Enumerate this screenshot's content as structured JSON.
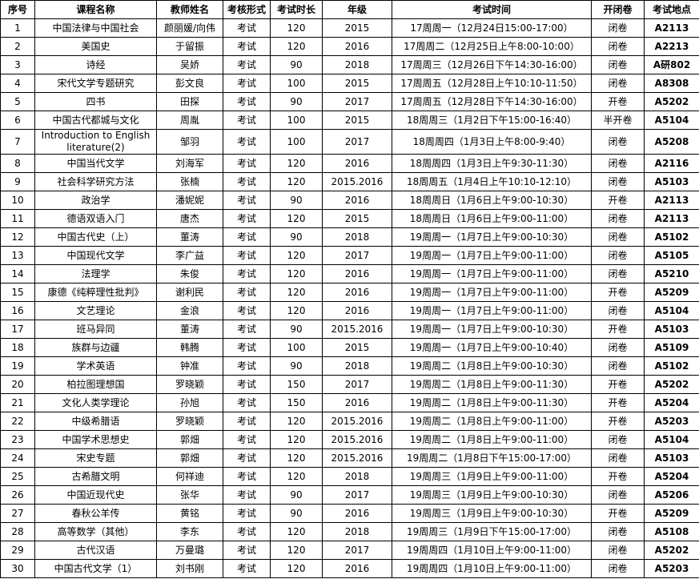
{
  "table": {
    "headers": [
      "序号",
      "课程名称",
      "教师姓名",
      "考核形式",
      "考试时长",
      "年级",
      "考试时间",
      "开闭卷",
      "考试地点"
    ],
    "rows": [
      [
        "1",
        "中国法律与中国社会",
        "颜丽媛/向伟",
        "考试",
        "120",
        "2015",
        "17周周一（12月24日15:00-17:00）",
        "闭卷",
        "A2113"
      ],
      [
        "2",
        "美国史",
        "于留振",
        "考试",
        "120",
        "2016",
        "17周周二（12月25日上午8:00-10:00）",
        "闭卷",
        "A2213"
      ],
      [
        "3",
        "诗经",
        "吴娇",
        "考试",
        "90",
        "2018",
        "17周周三（12月26日下午14:30-16:00）",
        "闭卷",
        "A研802"
      ],
      [
        "4",
        "宋代文学专题研究",
        "彭文良",
        "考试",
        "100",
        "2015",
        "17周周五（12月28日上午10:10-11:50）",
        "闭卷",
        "A8308"
      ],
      [
        "5",
        "四书",
        "田探",
        "考试",
        "90",
        "2017",
        "17周周五（12月28日下午14:30-16:00）",
        "开卷",
        "A5202"
      ],
      [
        "6",
        "中国古代都城与文化",
        "周胤",
        "考试",
        "100",
        "2015",
        "18周周三（1月2日下午15:00-16:40）",
        "半开卷",
        "A5104"
      ],
      [
        "7",
        "Introduction to English literature(2)",
        "邹羽",
        "考试",
        "100",
        "2017",
        "18周周四（1月3日上午8:00-9:40）",
        "闭卷",
        "A5208"
      ],
      [
        "8",
        "中国当代文学",
        "刘海军",
        "考试",
        "120",
        "2016",
        "18周周四（1月3日上午9:30-11:30）",
        "闭卷",
        "A2116"
      ],
      [
        "9",
        "社会科学研究方法",
        "张楠",
        "考试",
        "120",
        "2015.2016",
        "18周周五（1月4日上午10:10-12:10）",
        "闭卷",
        "A5103"
      ],
      [
        "10",
        "政治学",
        "潘妮妮",
        "考试",
        "90",
        "2016",
        "18周周日（1月6日上午9:00-10:30）",
        "开卷",
        "A2113"
      ],
      [
        "11",
        "德语双语入门",
        "唐杰",
        "考试",
        "120",
        "2015",
        "18周周日（1月6日上午9:00-11:00）",
        "闭卷",
        "A2113"
      ],
      [
        "12",
        "中国古代史（上）",
        "董涛",
        "考试",
        "90",
        "2018",
        "19周周一（1月7日上午9:00-10:30）",
        "闭卷",
        "A5102"
      ],
      [
        "13",
        "中国现代文学",
        "李广益",
        "考试",
        "120",
        "2017",
        "19周周一（1月7日上午9:00-11:00）",
        "闭卷",
        "A5105"
      ],
      [
        "14",
        "法理学",
        "朱俊",
        "考试",
        "120",
        "2016",
        "19周周一（1月7日上午9:00-11:00）",
        "闭卷",
        "A5210"
      ],
      [
        "15",
        "康德《纯粹理性批判》",
        "谢利民",
        "考试",
        "120",
        "2016",
        "19周周一（1月7日上午9:00-11:00）",
        "开卷",
        "A5209"
      ],
      [
        "16",
        "文艺理论",
        "金浪",
        "考试",
        "120",
        "2016",
        "19周周一（1月7日上午9:00-11:00）",
        "闭卷",
        "A5104"
      ],
      [
        "17",
        "班马异同",
        "董涛",
        "考试",
        "90",
        "2015.2016",
        "19周周一（1月7日上午9:00-10:30）",
        "开卷",
        "A5103"
      ],
      [
        "18",
        "族群与边疆",
        "韩腾",
        "考试",
        "100",
        "2015",
        "19周周一（1月7日上午9:00-10:40）",
        "闭卷",
        "A5109"
      ],
      [
        "19",
        "学术英语",
        "钟准",
        "考试",
        "90",
        "2018",
        "19周周二（1月8日上午9:00-10:30）",
        "闭卷",
        "A5102"
      ],
      [
        "20",
        "柏拉图理想国",
        "罗晓颖",
        "考试",
        "150",
        "2017",
        "19周周二（1月8日上午9:00-11:30）",
        "开卷",
        "A5202"
      ],
      [
        "21",
        "文化人类学理论",
        "孙旭",
        "考试",
        "150",
        "2016",
        "19周周二（1月8日上午9:00-11:30）",
        "开卷",
        "A5204"
      ],
      [
        "22",
        "中级希腊语",
        "罗晓颖",
        "考试",
        "120",
        "2015.2016",
        "19周周二（1月8日上午9:00-11:00）",
        "开卷",
        "A5203"
      ],
      [
        "23",
        "中国学术思想史",
        "郭畑",
        "考试",
        "120",
        "2015.2016",
        "19周周二（1月8日上午9:00-11:00）",
        "闭卷",
        "A5104"
      ],
      [
        "24",
        "宋史专题",
        "郭畑",
        "考试",
        "120",
        "2015.2016",
        "19周周二（1月8日下午15:00-17:00）",
        "闭卷",
        "A5103"
      ],
      [
        "25",
        "古希腊文明",
        "何祥迪",
        "考试",
        "120",
        "2018",
        "19周周三（1月9日上午9:00-11:00）",
        "开卷",
        "A5204"
      ],
      [
        "26",
        "中国近现代史",
        "张华",
        "考试",
        "90",
        "2017",
        "19周周三（1月9日上午9:00-10:30）",
        "闭卷",
        "A5206"
      ],
      [
        "27",
        "春秋公羊传",
        "黄铭",
        "考试",
        "90",
        "2016",
        "19周周三（1月9日上午9:00-10:30）",
        "开卷",
        "A5209"
      ],
      [
        "28",
        "高等数学（其他）",
        "李东",
        "考试",
        "120",
        "2018",
        "19周周三（1月9日下午15:00-17:00）",
        "闭卷",
        "A5108"
      ],
      [
        "29",
        "古代汉语",
        "万曼璐",
        "考试",
        "120",
        "2017",
        "19周周四（1月10日上午9:00-11:00）",
        "闭卷",
        "A5202"
      ],
      [
        "30",
        "中国古代文学（1）",
        "刘书刚",
        "考试",
        "120",
        "2016",
        "19周周四（1月10日上午9:00-11:00）",
        "闭卷",
        "A5203"
      ]
    ]
  }
}
